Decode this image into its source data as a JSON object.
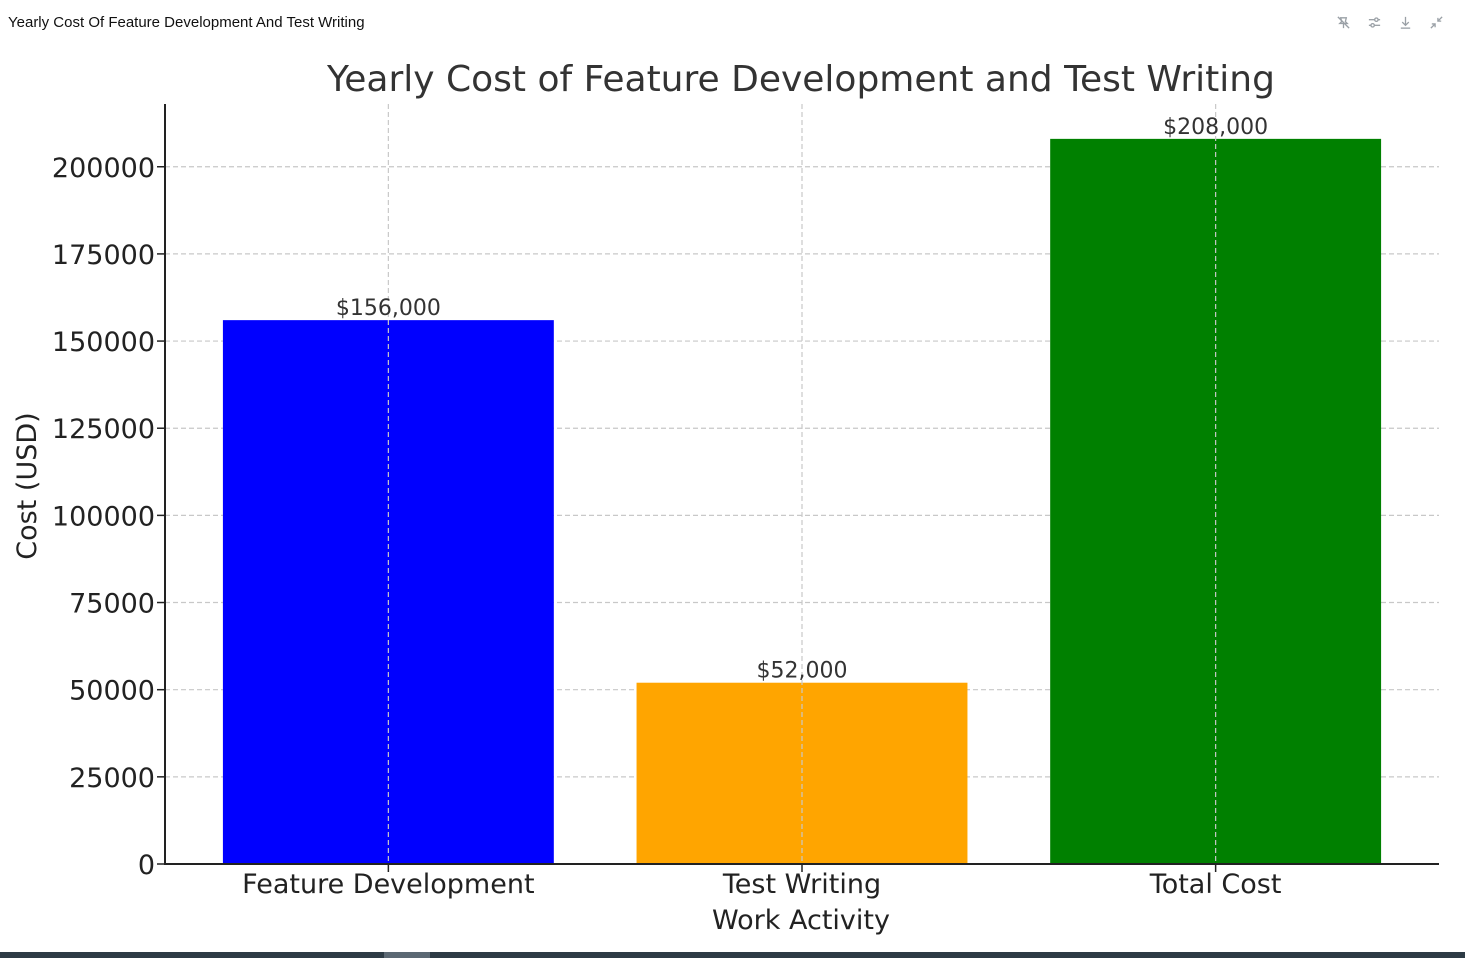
{
  "window": {
    "title": "Yearly Cost Of Feature Development And Test Writing",
    "toolbar": [
      {
        "name": "reset-zoom-button",
        "icon": "pin-off-icon"
      },
      {
        "name": "settings-button",
        "icon": "sliders-icon"
      },
      {
        "name": "download-button",
        "icon": "download-icon"
      },
      {
        "name": "collapse-button",
        "icon": "collapse-icon"
      }
    ]
  },
  "chart_data": {
    "type": "bar",
    "title": "Yearly Cost of Feature Development and Test Writing",
    "xlabel": "Work Activity",
    "ylabel": "Cost (USD)",
    "categories": [
      "Feature Development",
      "Test Writing",
      "Total Cost"
    ],
    "values": [
      156000,
      52000,
      208000
    ],
    "data_labels": [
      "$156,000",
      "$52,000",
      "$208,000"
    ],
    "colors": [
      "#0000ff",
      "#ffa500",
      "#008000"
    ],
    "ylim": [
      0,
      218000
    ],
    "yticks": [
      0,
      25000,
      50000,
      75000,
      100000,
      125000,
      150000,
      175000,
      200000
    ],
    "ytick_labels": [
      "0",
      "25000",
      "50000",
      "75000",
      "100000",
      "125000",
      "150000",
      "175000",
      "200000"
    ],
    "grid": true
  }
}
